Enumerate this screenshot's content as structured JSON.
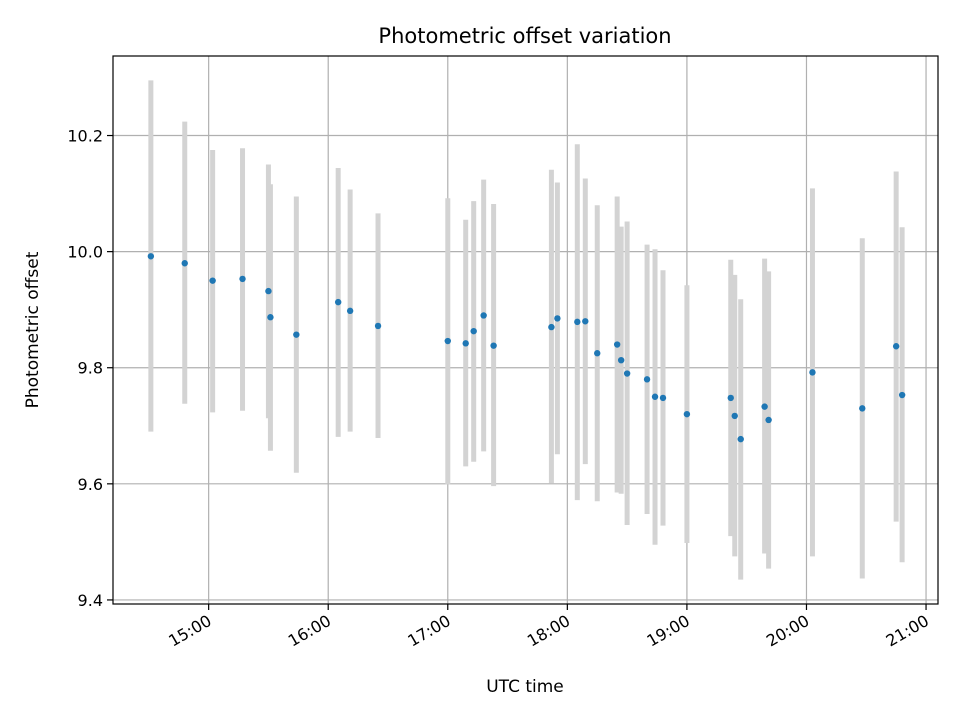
{
  "chart_data": {
    "type": "scatter",
    "title": "Photometric offset variation",
    "xlabel": "UTC time",
    "ylabel": "Photometric offset",
    "xlim": [
      "14:12",
      "21:06"
    ],
    "ylim": [
      9.393,
      10.337
    ],
    "grid": true,
    "x_ticks": [
      "15:00",
      "16:00",
      "17:00",
      "18:00",
      "19:00",
      "20:00",
      "21:00"
    ],
    "y_ticks": [
      "9.4",
      "9.6",
      "9.8",
      "10.0",
      "10.2"
    ],
    "colors": {
      "point": "#1f77b4",
      "errorbar": "#d3d3d3",
      "grid": "#b0b0b0"
    },
    "points": [
      {
        "x": "14:31",
        "y": 9.992,
        "lo": 9.69,
        "hi": 10.295
      },
      {
        "x": "14:48",
        "y": 9.98,
        "lo": 9.738,
        "hi": 10.224
      },
      {
        "x": "15:02",
        "y": 9.95,
        "lo": 9.723,
        "hi": 10.175
      },
      {
        "x": "15:17",
        "y": 9.953,
        "lo": 9.726,
        "hi": 10.178
      },
      {
        "x": "15:30",
        "y": 9.932,
        "lo": 9.713,
        "hi": 10.15
      },
      {
        "x": "15:31",
        "y": 9.887,
        "lo": 9.657,
        "hi": 10.116
      },
      {
        "x": "15:44",
        "y": 9.857,
        "lo": 9.619,
        "hi": 10.095
      },
      {
        "x": "16:05",
        "y": 9.913,
        "lo": 9.681,
        "hi": 10.144
      },
      {
        "x": "16:11",
        "y": 9.898,
        "lo": 9.69,
        "hi": 10.107
      },
      {
        "x": "16:25",
        "y": 9.872,
        "lo": 9.679,
        "hi": 10.066
      },
      {
        "x": "17:00",
        "y": 9.846,
        "lo": 9.599,
        "hi": 10.092
      },
      {
        "x": "17:09",
        "y": 9.842,
        "lo": 9.63,
        "hi": 10.055
      },
      {
        "x": "17:13",
        "y": 9.863,
        "lo": 9.638,
        "hi": 10.087
      },
      {
        "x": "17:18",
        "y": 9.89,
        "lo": 9.656,
        "hi": 10.124
      },
      {
        "x": "17:23",
        "y": 9.838,
        "lo": 9.596,
        "hi": 10.082
      },
      {
        "x": "17:52",
        "y": 9.87,
        "lo": 9.601,
        "hi": 10.141
      },
      {
        "x": "17:55",
        "y": 9.885,
        "lo": 9.651,
        "hi": 10.119
      },
      {
        "x": "18:05",
        "y": 9.879,
        "lo": 9.572,
        "hi": 10.185
      },
      {
        "x": "18:09",
        "y": 9.88,
        "lo": 9.634,
        "hi": 10.126
      },
      {
        "x": "18:15",
        "y": 9.825,
        "lo": 9.57,
        "hi": 10.08
      },
      {
        "x": "18:25",
        "y": 9.84,
        "lo": 9.585,
        "hi": 10.095
      },
      {
        "x": "18:27",
        "y": 9.813,
        "lo": 9.583,
        "hi": 10.043
      },
      {
        "x": "18:30",
        "y": 9.79,
        "lo": 9.529,
        "hi": 10.052
      },
      {
        "x": "18:40",
        "y": 9.78,
        "lo": 9.548,
        "hi": 10.012
      },
      {
        "x": "18:44",
        "y": 9.75,
        "lo": 9.495,
        "hi": 10.004
      },
      {
        "x": "18:48",
        "y": 9.748,
        "lo": 9.528,
        "hi": 9.968
      },
      {
        "x": "19:00",
        "y": 9.72,
        "lo": 9.498,
        "hi": 9.942
      },
      {
        "x": "19:22",
        "y": 9.748,
        "lo": 9.51,
        "hi": 9.986
      },
      {
        "x": "19:24",
        "y": 9.717,
        "lo": 9.475,
        "hi": 9.96
      },
      {
        "x": "19:27",
        "y": 9.677,
        "lo": 9.435,
        "hi": 9.918
      },
      {
        "x": "19:39",
        "y": 9.733,
        "lo": 9.48,
        "hi": 9.988
      },
      {
        "x": "19:41",
        "y": 9.71,
        "lo": 9.454,
        "hi": 9.966
      },
      {
        "x": "20:03",
        "y": 9.792,
        "lo": 9.475,
        "hi": 10.109
      },
      {
        "x": "20:28",
        "y": 9.73,
        "lo": 9.437,
        "hi": 10.023
      },
      {
        "x": "20:45",
        "y": 9.837,
        "lo": 9.535,
        "hi": 10.138
      },
      {
        "x": "20:48",
        "y": 9.753,
        "lo": 9.465,
        "hi": 10.042
      }
    ]
  }
}
